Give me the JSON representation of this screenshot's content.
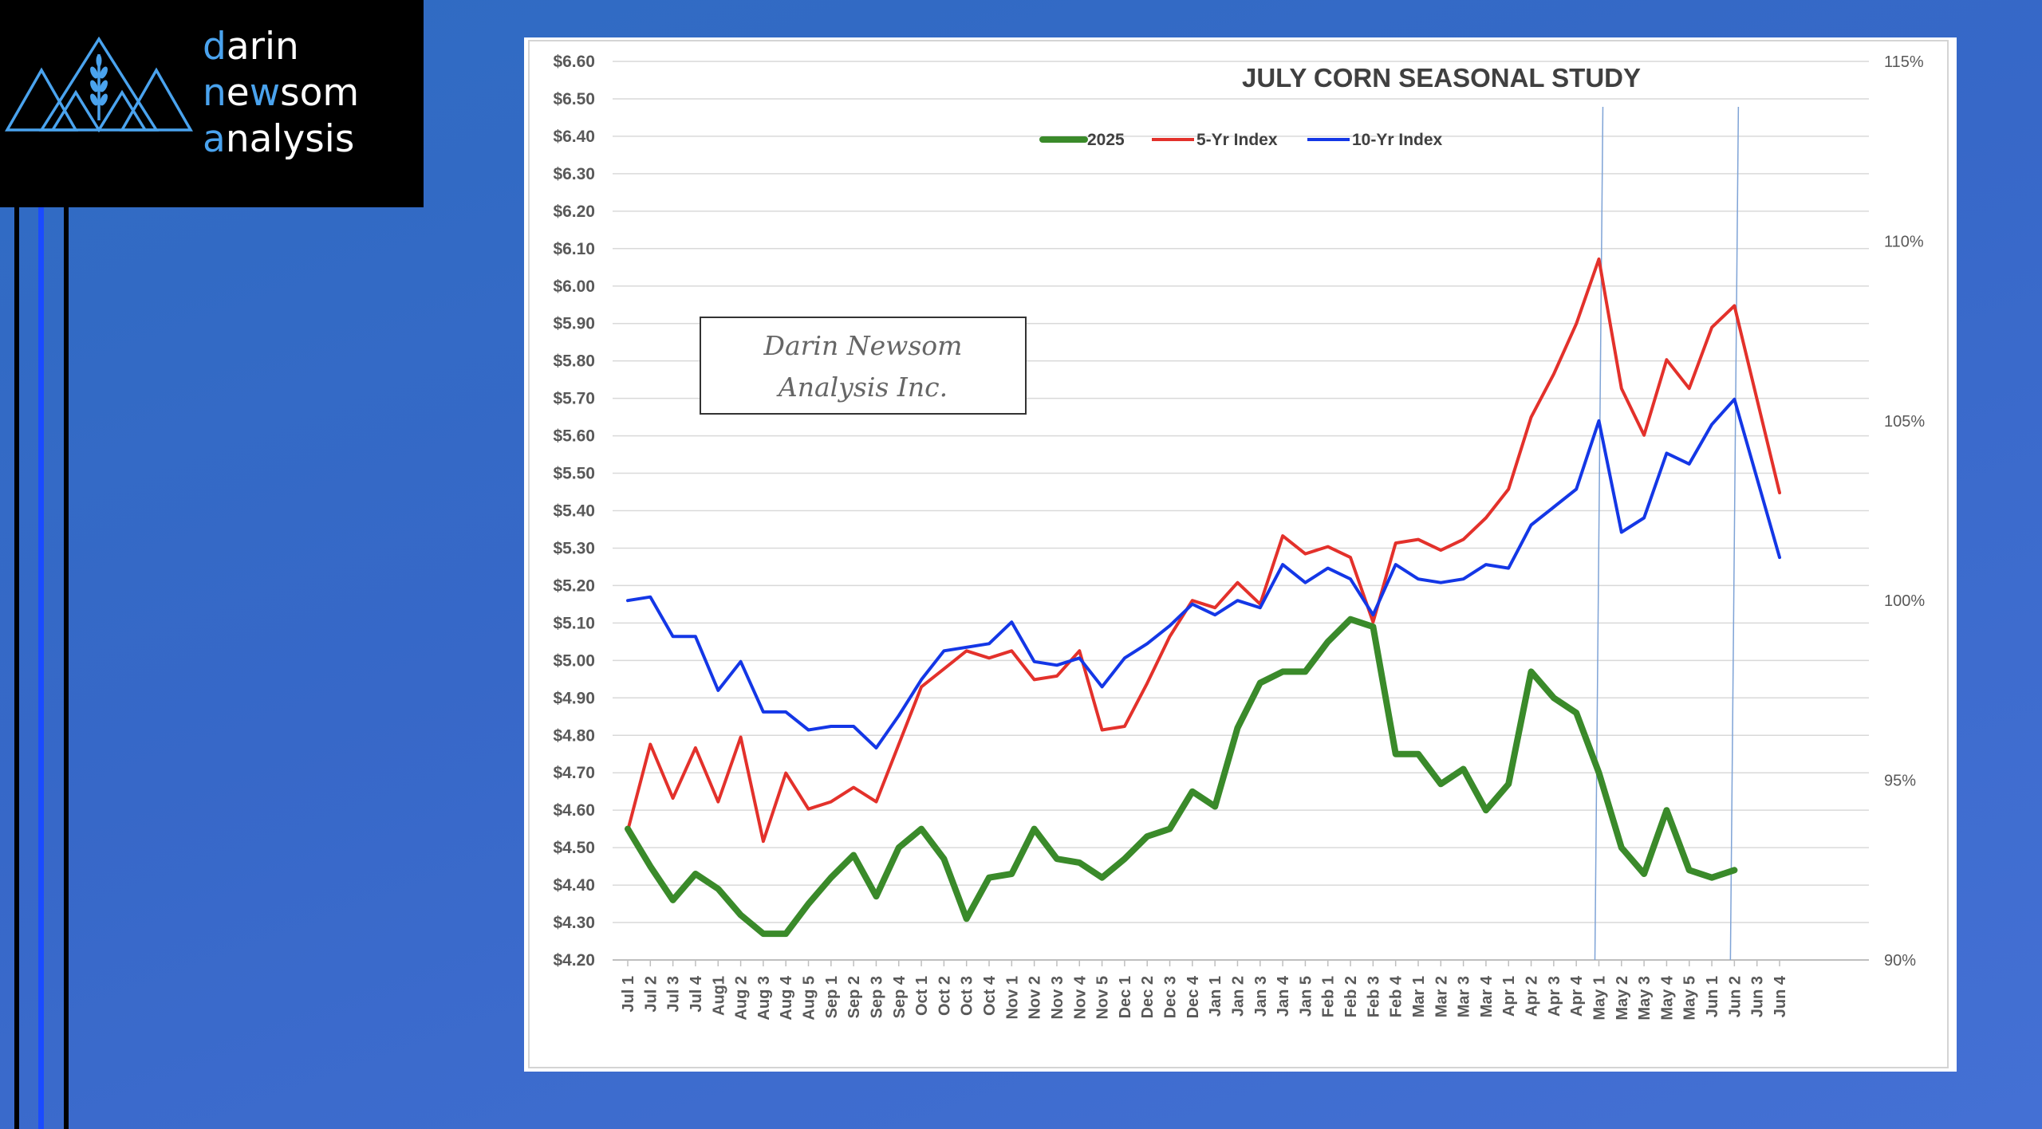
{
  "brand": {
    "line1": "darin",
    "line2": "newsom",
    "line3": "analysis"
  },
  "watermark": {
    "line1": "Darin Newsom",
    "line2": "Analysis Inc."
  },
  "colors": {
    "s2025": "#3a8a2a",
    "s5yr": "#e3312b",
    "s10yr": "#1437e6",
    "logo_accent": "#4aa3ee"
  },
  "chart_data": {
    "type": "line",
    "title": "JULY CORN SEASONAL STUDY",
    "grid": true,
    "legend_placement": "top-center",
    "categories": [
      "Jul 1",
      "Jul 2",
      "Jul 3",
      "Jul 4",
      "Aug1",
      "Aug 2",
      "Aug 3",
      "Aug 4",
      "Aug 5",
      "Sep 1",
      "Sep 2",
      "Sep 3",
      "Sep 4",
      "Oct 1",
      "Oct 2",
      "Oct 3",
      "Oct 4",
      "Nov 1",
      "Nov 2",
      "Nov 3",
      "Nov 4",
      "Nov 5",
      "Dec 1",
      "Dec 2",
      "Dec 3",
      "Dec 4",
      "Jan 1",
      "Jan 2",
      "Jan 3",
      "Jan 4",
      "Jan 5",
      "Feb 1",
      "Feb 2",
      "Feb 3",
      "Feb 4",
      "Mar 1",
      "Mar 2",
      "Mar 3",
      "Mar 4",
      "Apr 1",
      "Apr 2",
      "Apr 3",
      "Apr 4",
      "May 1",
      "May 2",
      "May 3",
      "May 4",
      "May 5",
      "Jun 1",
      "Jun 2",
      "Jun 3",
      "Jun 4"
    ],
    "y_left": {
      "min": 4.2,
      "max": 6.6,
      "tick_labels": [
        "$4.20",
        "$4.30",
        "$4.40",
        "$4.50",
        "$4.60",
        "$4.70",
        "$4.80",
        "$4.90",
        "$5.00",
        "$5.10",
        "$5.20",
        "$5.30",
        "$5.40",
        "$5.50",
        "$5.60",
        "$5.70",
        "$5.80",
        "$5.90",
        "$6.00",
        "$6.10",
        "$6.20",
        "$6.30",
        "$6.40",
        "$6.50",
        "$6.60"
      ]
    },
    "y_right": {
      "min": 90,
      "max": 115,
      "tick_labels": [
        "90%",
        "95%",
        "100%",
        "105%",
        "110%",
        "115%"
      ]
    },
    "series": [
      {
        "name": "2025",
        "axis": "left",
        "values": [
          4.55,
          4.45,
          4.36,
          4.43,
          4.39,
          4.32,
          4.27,
          4.27,
          4.35,
          4.42,
          4.48,
          4.37,
          4.5,
          4.55,
          4.47,
          4.31,
          4.42,
          4.43,
          4.55,
          4.47,
          4.46,
          4.42,
          4.47,
          4.53,
          4.55,
          4.65,
          4.61,
          4.82,
          4.94,
          4.97,
          4.97,
          5.05,
          5.11,
          5.09,
          4.75,
          4.75,
          4.67,
          4.71,
          4.6,
          4.67,
          4.97,
          4.9,
          4.86,
          4.7,
          4.5,
          4.43,
          4.6,
          4.44,
          4.42,
          4.44,
          null,
          null
        ]
      },
      {
        "name": "5-Yr Index",
        "axis": "right",
        "values": [
          93.6,
          96.0,
          94.5,
          95.9,
          94.4,
          96.2,
          93.3,
          95.2,
          94.2,
          94.4,
          94.8,
          94.4,
          96.0,
          97.6,
          98.1,
          98.6,
          98.4,
          98.6,
          97.8,
          97.9,
          98.6,
          96.4,
          96.5,
          97.7,
          99.0,
          100.0,
          99.8,
          100.5,
          99.9,
          101.8,
          101.3,
          101.5,
          101.2,
          99.4,
          101.6,
          101.7,
          101.4,
          101.7,
          102.3,
          103.1,
          105.1,
          106.3,
          107.7,
          109.5,
          105.9,
          104.6,
          106.7,
          105.9,
          107.6,
          108.2,
          105.6,
          103.0
        ]
      },
      {
        "name": "10-Yr Index",
        "axis": "right",
        "values": [
          100.0,
          100.1,
          99.0,
          99.0,
          97.5,
          98.3,
          96.9,
          96.9,
          96.4,
          96.5,
          96.5,
          95.9,
          96.8,
          97.8,
          98.6,
          98.7,
          98.8,
          99.4,
          98.3,
          98.2,
          98.4,
          97.6,
          98.4,
          98.8,
          99.3,
          99.9,
          99.6,
          100.0,
          99.8,
          101.0,
          100.5,
          100.9,
          100.6,
          99.6,
          101.0,
          100.6,
          100.5,
          100.6,
          101.0,
          100.9,
          102.1,
          102.6,
          103.1,
          105.0,
          101.9,
          102.3,
          104.1,
          103.8,
          104.9,
          105.6,
          103.4,
          101.2
        ]
      }
    ]
  }
}
